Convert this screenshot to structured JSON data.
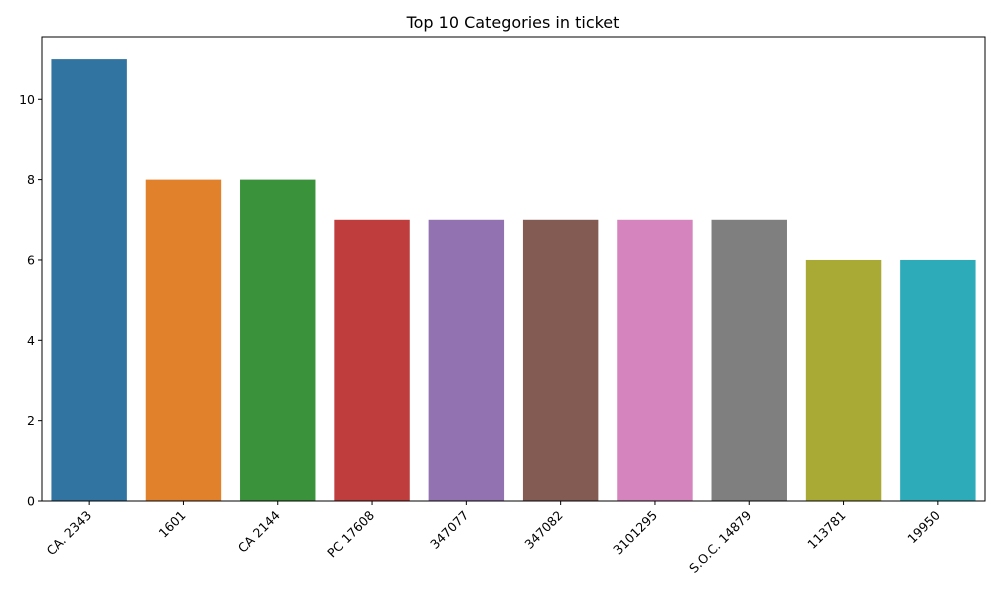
{
  "chart_data": {
    "type": "bar",
    "title": "Top 10 Categories in ticket",
    "xlabel": "",
    "ylabel": "",
    "categories": [
      "CA. 2343",
      "1601",
      "CA 2144",
      "PC 17608",
      "347077",
      "347082",
      "3101295",
      "S.O.C. 14879",
      "113781",
      "19950"
    ],
    "values": [
      11,
      8,
      8,
      7,
      7,
      7,
      7,
      7,
      6,
      6
    ],
    "colors": [
      "#3274a1",
      "#e1812c",
      "#3a923a",
      "#c03d3e",
      "#9372b2",
      "#845b53",
      "#d684bd",
      "#7f7f7f",
      "#a9aa35",
      "#2eabb8"
    ],
    "ylim": [
      0,
      11.55
    ],
    "yticks": [
      0,
      2,
      4,
      6,
      8,
      10
    ],
    "grid": false,
    "legend": "none"
  }
}
